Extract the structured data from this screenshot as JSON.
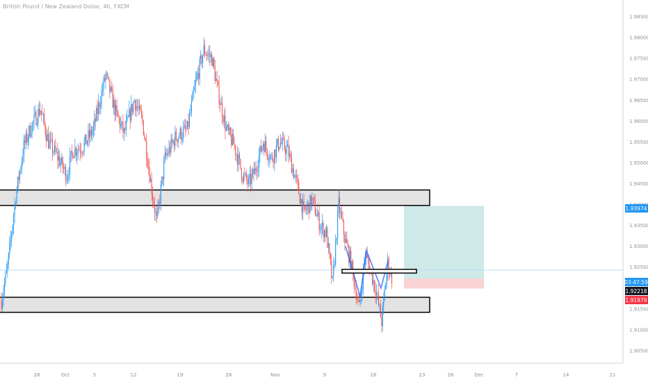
{
  "header": {
    "title": "British Pound / New Zealand Dollar, 4h, FXCM"
  },
  "colors": {
    "bull": "#2196f3",
    "bear": "#ef5350",
    "profit": "#cde9e8",
    "loss": "#f9d3d3",
    "blue_tag": "#2196f3",
    "red_tag": "#f23645",
    "zone": "#e3e3e3"
  },
  "price_tags": [
    {
      "label": "1.93974",
      "value": 1.93974,
      "color": "#2196f3"
    },
    {
      "label": "03:47:59",
      "value": 1.9243,
      "color": "#2196f3"
    },
    {
      "label": "1.92218",
      "value": 1.92218,
      "color": "#131722"
    },
    {
      "label": "1.91979",
      "value": 1.91979,
      "color": "#f23645"
    }
  ],
  "chart_data": {
    "type": "candlestick",
    "title": "British Pound / New Zealand Dollar, 4h, FXCM",
    "ylim": [
      1.902,
      1.989
    ],
    "yticks": [
      "1.98500",
      "1.98000",
      "1.97500",
      "1.97000",
      "1.96500",
      "1.96000",
      "1.95500",
      "1.95000",
      "1.94500",
      "1.94000",
      "1.93500",
      "1.93000",
      "1.92500",
      "1.92000",
      "1.91500",
      "1.91000",
      "1.90500"
    ],
    "xticks": [
      "28",
      "Oct",
      "5",
      "12",
      "19",
      "26",
      "Nov",
      "9",
      "16",
      "23",
      "26",
      "Dec",
      "7",
      "14",
      "21"
    ],
    "current_price": 1.9243,
    "anchors": [
      {
        "i": 0,
        "p": 1.917
      },
      {
        "i": 6,
        "p": 1.925
      },
      {
        "i": 14,
        "p": 1.942
      },
      {
        "i": 22,
        "p": 1.954
      },
      {
        "i": 28,
        "p": 1.958
      },
      {
        "i": 38,
        "p": 1.963
      },
      {
        "i": 46,
        "p": 1.955
      },
      {
        "i": 56,
        "p": 1.951
      },
      {
        "i": 64,
        "p": 1.947
      },
      {
        "i": 70,
        "p": 1.953
      },
      {
        "i": 80,
        "p": 1.954
      },
      {
        "i": 90,
        "p": 1.958
      },
      {
        "i": 102,
        "p": 1.971
      },
      {
        "i": 112,
        "p": 1.962
      },
      {
        "i": 120,
        "p": 1.957
      },
      {
        "i": 130,
        "p": 1.965
      },
      {
        "i": 138,
        "p": 1.96
      },
      {
        "i": 148,
        "p": 1.942
      },
      {
        "i": 152,
        "p": 1.936
      },
      {
        "i": 160,
        "p": 1.951
      },
      {
        "i": 170,
        "p": 1.956
      },
      {
        "i": 182,
        "p": 1.958
      },
      {
        "i": 190,
        "p": 1.969
      },
      {
        "i": 198,
        "p": 1.977
      },
      {
        "i": 206,
        "p": 1.975
      },
      {
        "i": 212,
        "p": 1.967
      },
      {
        "i": 220,
        "p": 1.958
      },
      {
        "i": 228,
        "p": 1.954
      },
      {
        "i": 236,
        "p": 1.947
      },
      {
        "i": 242,
        "p": 1.945
      },
      {
        "i": 248,
        "p": 1.948
      },
      {
        "i": 256,
        "p": 1.955
      },
      {
        "i": 264,
        "p": 1.951
      },
      {
        "i": 272,
        "p": 1.955
      },
      {
        "i": 280,
        "p": 1.953
      },
      {
        "i": 288,
        "p": 1.946
      },
      {
        "i": 296,
        "p": 1.938
      },
      {
        "i": 304,
        "p": 1.941
      },
      {
        "i": 312,
        "p": 1.935
      },
      {
        "i": 318,
        "p": 1.933
      },
      {
        "i": 324,
        "p": 1.921
      },
      {
        "i": 330,
        "p": 1.94
      },
      {
        "i": 336,
        "p": 1.932
      },
      {
        "i": 342,
        "p": 1.926
      },
      {
        "i": 350,
        "p": 1.915
      },
      {
        "i": 356,
        "p": 1.928
      },
      {
        "i": 360,
        "p": 1.925
      },
      {
        "i": 366,
        "p": 1.92
      },
      {
        "i": 372,
        "p": 1.912
      },
      {
        "i": 378,
        "p": 1.926
      },
      {
        "i": 382,
        "p": 1.9225
      }
    ],
    "zones": [
      {
        "name": "resistance-zone",
        "top": 1.9435,
        "bottom": 1.9398,
        "x_start": "Sep",
        "x_end": "23"
      },
      {
        "name": "support-zone",
        "top": 1.9178,
        "bottom": 1.9142,
        "x_start": "Sep",
        "x_end": "23"
      },
      {
        "name": "neckline-box",
        "top": 1.9245,
        "bottom": 1.9236
      }
    ],
    "position": {
      "type": "long",
      "entry": 1.9223,
      "target": 1.9397,
      "stop": 1.9199
    },
    "pattern_polyline": [
      [
        1.93,
        1.9285
      ],
      [
        1.918,
        1.9125
      ],
      [
        1.929,
        1.929
      ],
      [
        1.92,
        1.9105
      ],
      [
        1.9265,
        1.9265
      ]
    ]
  }
}
